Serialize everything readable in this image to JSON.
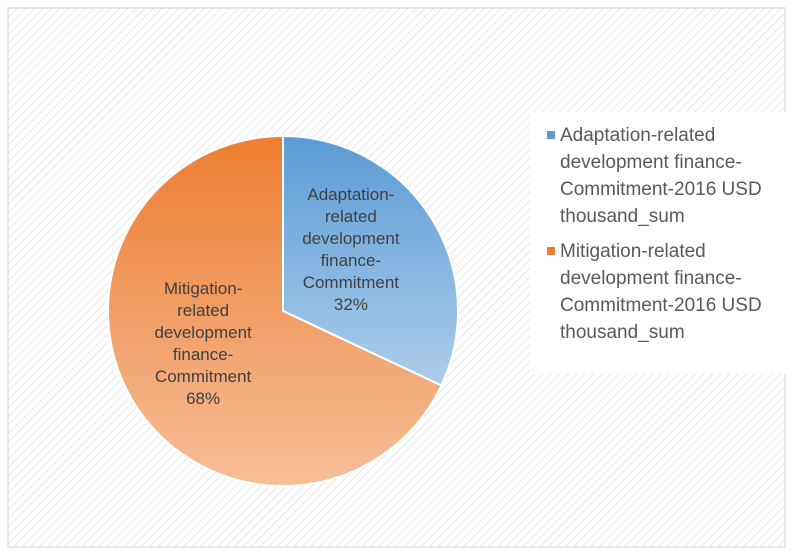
{
  "chart_data": {
    "type": "pie",
    "categories": [
      "Adaptation-related development finance-Commitment-2016 USD thousand_sum",
      "Mitigation-related development finance-Commitment-2016 USD thousand_sum"
    ],
    "label_names": [
      "Adaptation-related development finance-Commitment",
      "Mitigation-related development finance-Commitment"
    ],
    "values": [
      32,
      68
    ],
    "value_labels": [
      "32%",
      "68%"
    ],
    "colors": [
      "#5b9bd5",
      "#ed7d31"
    ],
    "legend": "right"
  }
}
